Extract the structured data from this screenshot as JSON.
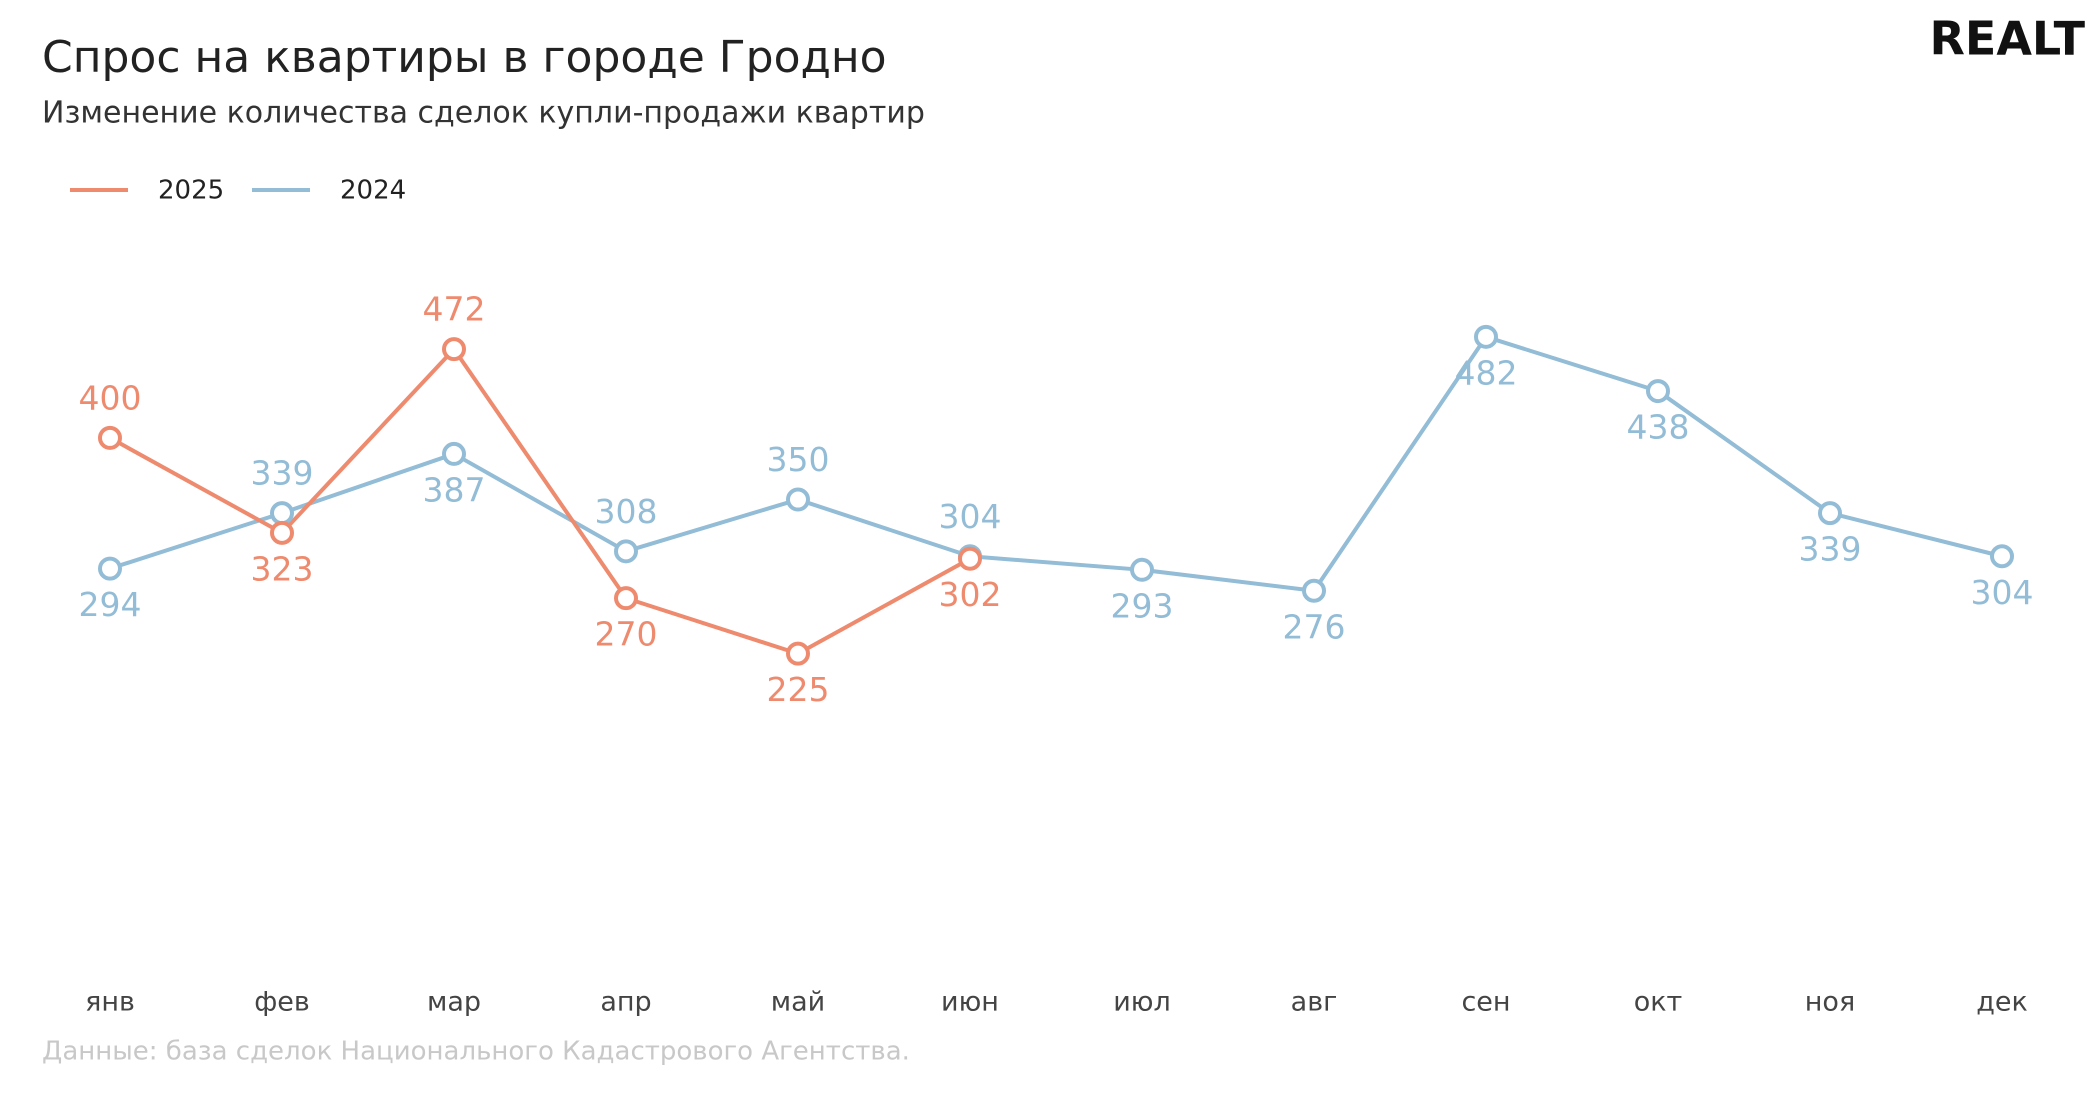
{
  "logo": "REALT",
  "chart_data": {
    "type": "line",
    "title": "Спрос на квартиры в городе Гродно",
    "subtitle": "Изменение количества сделок купли-продажи квартир",
    "source": "Данные: база сделок Национального Кадастрового Агентства.",
    "categories": [
      "янв",
      "фев",
      "мар",
      "апр",
      "май",
      "июн",
      "июл",
      "авг",
      "сен",
      "окт",
      "ноя",
      "дек"
    ],
    "series": [
      {
        "name": "2025",
        "color": "#ee8a6e",
        "values": [
          400,
          323,
          472,
          270,
          225,
          302,
          null,
          null,
          null,
          null,
          null,
          null
        ]
      },
      {
        "name": "2024",
        "color": "#93bcd6",
        "values": [
          294,
          339,
          387,
          308,
          350,
          304,
          293,
          276,
          482,
          438,
          339,
          304
        ]
      }
    ],
    "ylim": [
      0,
      550
    ]
  }
}
